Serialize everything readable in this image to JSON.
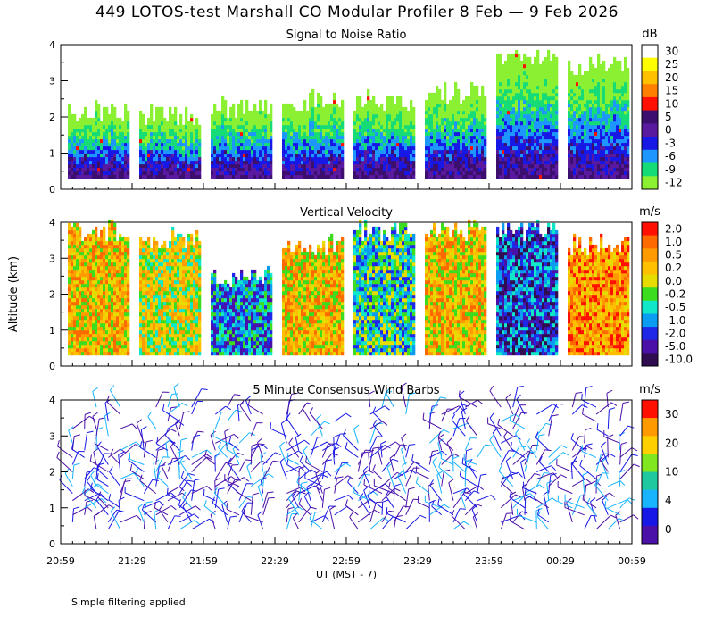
{
  "title": "449 LOTOS-test Marshall CO Modular Profiler  8 Feb —  9 Feb 2026",
  "footnote": "Simple filtering applied",
  "chart_data": [
    {
      "type": "heatmap",
      "title": "Signal to Noise Ratio",
      "ylabel": "",
      "ylim": [
        0,
        4
      ],
      "yticks": [
        "0",
        "1",
        "2",
        "3",
        "4"
      ],
      "colorbar": {
        "unit": "dB",
        "labels": [
          "30",
          "25",
          "20",
          "15",
          "10",
          "5",
          "0",
          "-3",
          "-6",
          "-9",
          "-12"
        ],
        "colors": [
          "#ffffff",
          "#ffff00",
          "#ffc000",
          "#ff8000",
          "#ff1000",
          "#3c0f6e",
          "#5a1aa0",
          "#1818e6",
          "#1e96ff",
          "#16dc78",
          "#8cf032"
        ]
      },
      "segments": [
        {
          "start": "21:02",
          "end": "21:27",
          "top_km": 2.4
        },
        {
          "start": "21:32",
          "end": "21:57",
          "top_km": 2.3
        },
        {
          "start": "22:02",
          "end": "22:27",
          "top_km": 2.5
        },
        {
          "start": "22:32",
          "end": "22:57",
          "top_km": 2.7
        },
        {
          "start": "23:02",
          "end": "23:27",
          "top_km": 2.7
        },
        {
          "start": "23:32",
          "end": "23:57",
          "top_km": 2.9
        },
        {
          "start": "00:02",
          "end": "00:27",
          "top_km": 4.0
        },
        {
          "start": "00:32",
          "end": "00:57",
          "top_km": 3.7
        }
      ]
    },
    {
      "type": "heatmap",
      "title": "Vertical Velocity",
      "ylabel": "Altitude (km)",
      "ylim": [
        0,
        4
      ],
      "yticks": [
        "0",
        "1",
        "2",
        "3",
        "4"
      ],
      "colorbar": {
        "unit": "m/s",
        "labels": [
          "2.0",
          "1.0",
          "0.5",
          "0.2",
          "0.0",
          "-0.2",
          "-0.5",
          "-1.0",
          "-2.0",
          "-5.0",
          "-10.0"
        ],
        "colors": [
          "#ff1000",
          "#ff6a00",
          "#ff9a00",
          "#ffc000",
          "#e6dc00",
          "#3cdc1e",
          "#10e6c8",
          "#0a9cf0",
          "#1e28e6",
          "#4a10a8",
          "#300c50"
        ]
      },
      "segments": [
        {
          "start": "21:02",
          "end": "21:27",
          "top_km": 4.0
        },
        {
          "start": "21:32",
          "end": "21:57",
          "top_km": 3.8
        },
        {
          "start": "22:02",
          "end": "22:27",
          "top_km": 2.7
        },
        {
          "start": "22:32",
          "end": "22:57",
          "top_km": 3.6
        },
        {
          "start": "23:02",
          "end": "23:27",
          "top_km": 4.0
        },
        {
          "start": "23:32",
          "end": "23:57",
          "top_km": 4.0
        },
        {
          "start": "00:02",
          "end": "00:27",
          "top_km": 4.0
        },
        {
          "start": "00:32",
          "end": "00:57",
          "top_km": 3.6
        }
      ]
    },
    {
      "type": "scatter",
      "title": "5 Minute Consensus Wind Barbs",
      "ylabel": "",
      "ylim": [
        0,
        4
      ],
      "yticks": [
        "0",
        "1",
        "2",
        "3",
        "4"
      ],
      "colorbar": {
        "unit": "m/s",
        "labels": [
          "30",
          "20",
          "10",
          "4",
          "0"
        ],
        "colors": [
          "#ff1000",
          "#ff9a00",
          "#ffd000",
          "#80e620",
          "#20c8a0",
          "#18b4ff",
          "#1818e6",
          "#4a10a8"
        ]
      },
      "columns": [
        "21:04",
        "21:09",
        "21:14",
        "21:19",
        "21:24",
        "21:34",
        "21:39",
        "21:44",
        "21:49",
        "21:54",
        "22:04",
        "22:09",
        "22:14",
        "22:19",
        "22:24",
        "22:34",
        "22:39",
        "22:44",
        "22:49",
        "22:54",
        "23:04",
        "23:09",
        "23:14",
        "23:19",
        "23:24",
        "23:34",
        "23:39",
        "23:44",
        "23:49",
        "23:54",
        "00:04",
        "00:09",
        "00:14",
        "00:19",
        "00:24",
        "00:34",
        "00:39",
        "00:44",
        "00:49",
        "00:54"
      ],
      "altitudes_km": [
        0.4,
        0.6,
        0.8,
        1.0,
        1.2,
        1.4,
        1.6,
        1.8,
        2.0,
        2.2,
        2.4,
        2.6,
        2.8,
        3.0,
        3.2,
        3.4,
        3.6,
        3.8
      ]
    }
  ],
  "xaxis": {
    "label": "UT  (MST - 7)",
    "ticks": [
      "20:59",
      "21:29",
      "21:59",
      "22:29",
      "22:59",
      "23:29",
      "23:59",
      "00:29",
      "00:59"
    ]
  }
}
